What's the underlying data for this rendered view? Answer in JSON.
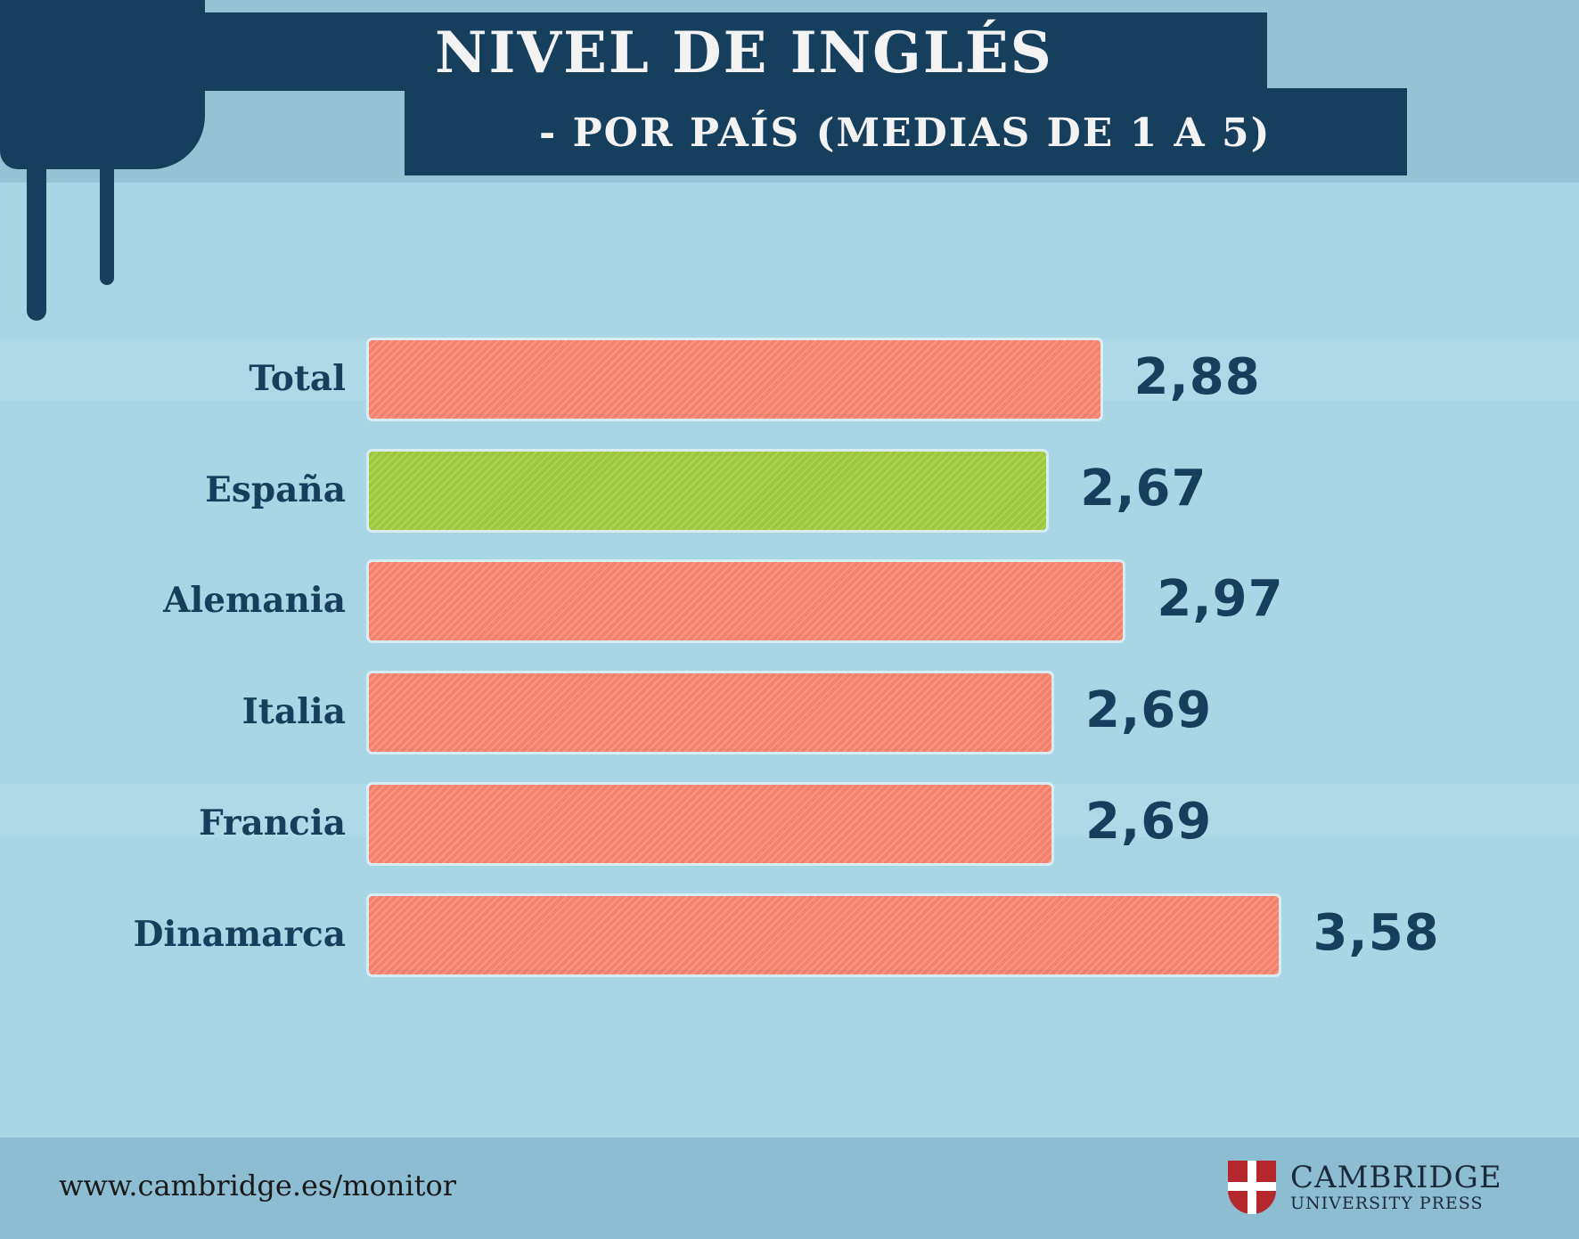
{
  "header": {
    "title": "NIVEL DE INGLÉS",
    "subtitle": "- POR PAÍS (MEDIAS DE 1 A 5)"
  },
  "chart_data": {
    "type": "bar",
    "orientation": "horizontal",
    "title": "NIVEL DE INGLÉS - POR PAÍS (MEDIAS DE 1 A 5)",
    "categories": [
      "Total",
      "España",
      "Alemania",
      "Italia",
      "Francia",
      "Dinamarca"
    ],
    "values": [
      2.88,
      2.67,
      2.97,
      2.69,
      2.69,
      3.58
    ],
    "value_labels": [
      "2,88",
      "2,67",
      "2,97",
      "2,69",
      "2,69",
      "3,58"
    ],
    "colors": [
      "#f5806c",
      "#9cc83a",
      "#f5806c",
      "#f5806c",
      "#f5806c",
      "#f5806c"
    ],
    "xlim": [
      0,
      5
    ],
    "grid": false,
    "legend": "none"
  },
  "footer": {
    "url": "www.cambridge.es/monitor",
    "logo_line1": "CAMBRIDGE",
    "logo_line2": "UNIVERSITY PRESS"
  }
}
